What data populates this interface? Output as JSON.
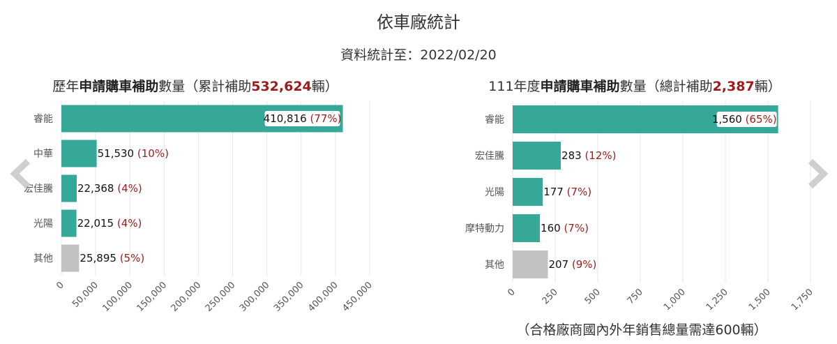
{
  "header": {
    "title": "依車廠統計",
    "subtitle": "資料統計至：2022/02/20"
  },
  "left_panel": {
    "title_prefix": "歷年",
    "title_bold": "申請購車補助",
    "title_mid": "數量（累計補助",
    "title_total": "532,624",
    "title_suffix": "輛）"
  },
  "right_panel": {
    "title_prefix": "111年度",
    "title_bold": "申請購車補助",
    "title_mid": "數量（總計補助",
    "title_total": "2,387",
    "title_suffix": "輛）",
    "footnote": "（合格廠商國內外年銷售總量需達600輛）"
  },
  "nav": {
    "prev_icon": "chevron-left-icon",
    "next_icon": "chevron-right-icon"
  },
  "colors": {
    "bar": "#36a897",
    "other_bar": "#c2c2c2",
    "percent": "#9b1c1c",
    "grid": "#e6e6e6"
  },
  "chart_data": [
    {
      "type": "bar",
      "orientation": "horizontal",
      "categories": [
        "睿能",
        "中華",
        "宏佳騰",
        "光陽",
        "其他"
      ],
      "values": [
        410816,
        51530,
        22368,
        22015,
        25895
      ],
      "value_labels": [
        "410,816",
        "51,530",
        "22,368",
        "22,015",
        "25,895"
      ],
      "percent_labels": [
        "(77%)",
        "(10%)",
        "(4%)",
        "(4%)",
        "(5%)"
      ],
      "xlim": [
        0,
        450000
      ],
      "xticks": [
        0,
        50000,
        100000,
        150000,
        200000,
        250000,
        300000,
        350000,
        400000,
        450000
      ],
      "xtick_labels": [
        "0",
        "50,000",
        "100,000",
        "150,000",
        "200,000",
        "250,000",
        "300,000",
        "350,000",
        "400,000",
        "450,000"
      ],
      "grid": true
    },
    {
      "type": "bar",
      "orientation": "horizontal",
      "categories": [
        "睿能",
        "宏佳騰",
        "光陽",
        "摩特動力",
        "其他"
      ],
      "values": [
        1560,
        283,
        177,
        160,
        207
      ],
      "value_labels": [
        "1,560",
        "283",
        "177",
        "160",
        "207"
      ],
      "percent_labels": [
        "(65%)",
        "(12%)",
        "(7%)",
        "(7%)",
        "(9%)"
      ],
      "xlim": [
        0,
        1750
      ],
      "xticks": [
        0,
        250,
        500,
        750,
        1000,
        1250,
        1500,
        1750
      ],
      "xtick_labels": [
        "0",
        "250",
        "500",
        "750",
        "1,000",
        "1,250",
        "1,500",
        "1,750"
      ],
      "grid": true
    }
  ]
}
